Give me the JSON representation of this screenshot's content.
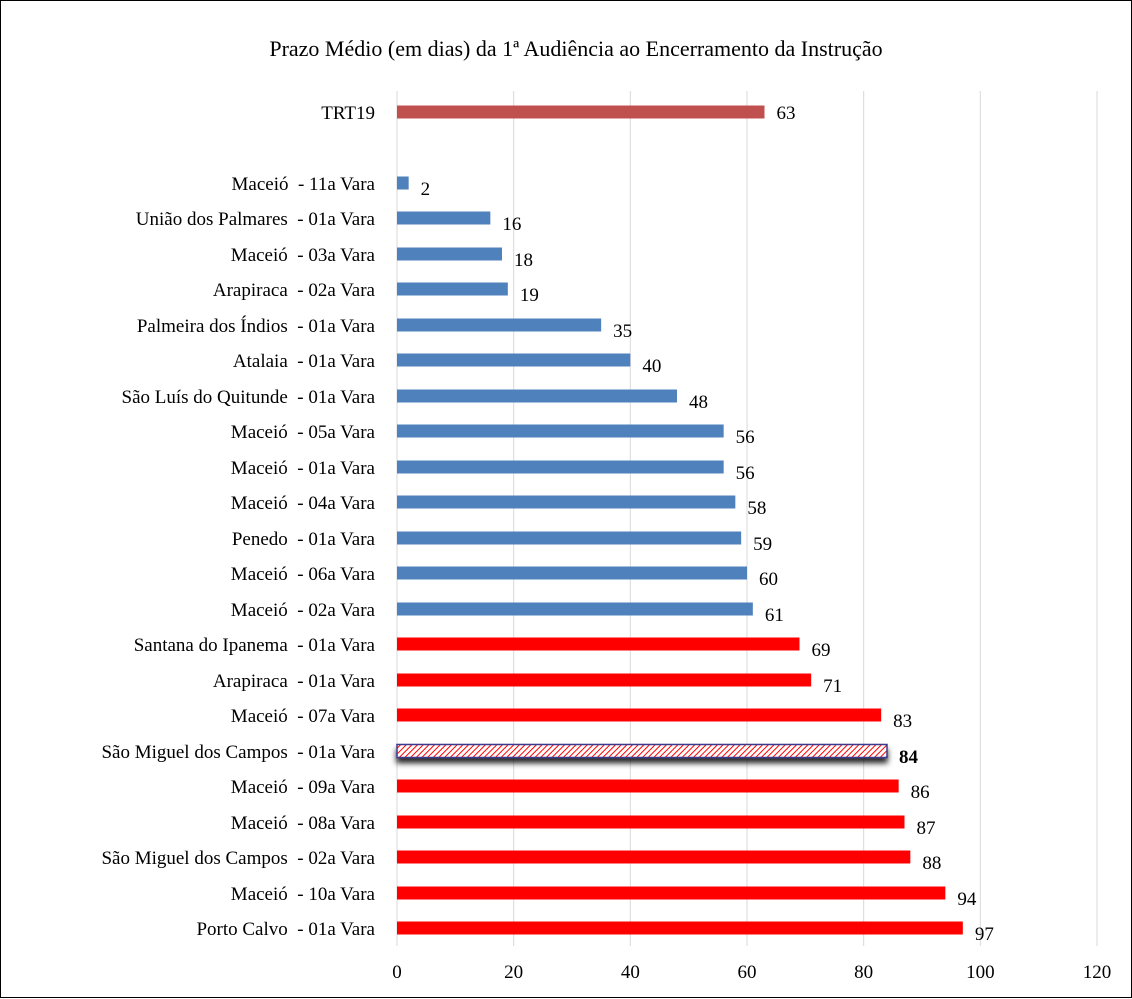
{
  "chart_data": {
    "type": "bar",
    "orientation": "horizontal",
    "title": "Prazo Médio (em dias) da 1ª Audiência ao Encerramento da Instrução",
    "xlim": [
      0,
      120
    ],
    "x_ticks": [
      0,
      20,
      40,
      60,
      80,
      100,
      120
    ],
    "grid": "vertical",
    "categories": [
      "TRT19",
      "Maceió  - 11a Vara",
      "União dos Palmares  - 01a Vara",
      "Maceió  - 03a Vara",
      "Arapiraca  - 02a Vara",
      "Palmeira dos Índios  - 01a Vara",
      "Atalaia  - 01a Vara",
      "São Luís do Quitunde  - 01a Vara",
      "Maceió  - 05a Vara",
      "Maceió  - 01a Vara",
      "Maceió  - 04a Vara",
      "Penedo  - 01a Vara",
      "Maceió  - 06a Vara",
      "Maceió  - 02a Vara",
      "Santana do Ipanema  - 01a Vara",
      "Arapiraca  - 01a Vara",
      "Maceió  - 07a Vara",
      "São Miguel dos Campos  - 01a Vara",
      "Maceió  - 09a Vara",
      "Maceió  - 08a Vara",
      "São Miguel dos Campos  - 02a Vara",
      "Maceió  - 10a Vara",
      "Porto Calvo  - 01a Vara"
    ],
    "values": [
      63,
      2,
      16,
      18,
      19,
      35,
      40,
      48,
      56,
      56,
      58,
      59,
      60,
      61,
      69,
      71,
      83,
      84,
      86,
      87,
      88,
      94,
      97
    ],
    "display_labels": [
      "63",
      "2",
      "16",
      "18",
      "19",
      "35",
      "40",
      "48",
      "56",
      "56",
      "58",
      "59",
      "60",
      "61",
      "69",
      "71",
      "83",
      "84",
      "86",
      "87",
      "88",
      "94",
      "97"
    ],
    "bar_colors": [
      "#c0504d",
      "#4f81bd",
      "#4f81bd",
      "#4f81bd",
      "#4f81bd",
      "#4f81bd",
      "#4f81bd",
      "#4f81bd",
      "#4f81bd",
      "#4f81bd",
      "#4f81bd",
      "#4f81bd",
      "#4f81bd",
      "#4f81bd",
      "#ff0000",
      "#ff0000",
      "#ff0000",
      "#ff0000",
      "#ff0000",
      "#ff0000",
      "#ff0000",
      "#ff0000",
      "#ff0000"
    ],
    "highlighted_category": "São Miguel dos Campos  - 01a Vara",
    "highlight_style": "hatched"
  }
}
